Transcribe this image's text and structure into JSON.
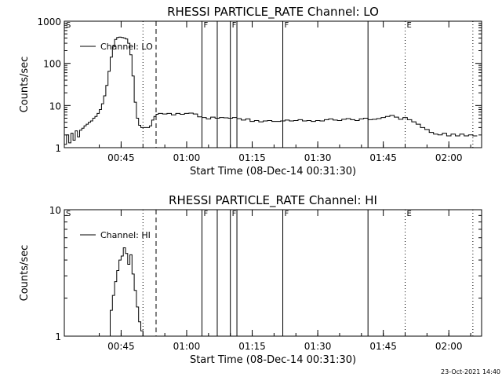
{
  "footer_timestamp": "23-Oct-2021 14:40",
  "chart_data": [
    {
      "type": "line",
      "title": "RHESSI PARTICLE_RATE Channel: LO",
      "xlabel": "Start Time (08-Dec-14 00:31:30)",
      "ylabel": "Counts/sec",
      "yscale": "log",
      "ylim": [
        1,
        1000
      ],
      "xlim_minutes": [
        0.5,
        56.0
      ],
      "xticks": [
        {
          "m": 13.5,
          "label": "00:45"
        },
        {
          "m": 28.5,
          "label": "01:00"
        },
        {
          "m": 43.5,
          "label": "01:15"
        },
        {
          "m": 58.5,
          "label": "01:30"
        },
        {
          "m": 73.5,
          "label": "01:45"
        },
        {
          "m": 88.5,
          "label": "02:00"
        }
      ],
      "yticks": [
        {
          "v": 1,
          "label": "1"
        },
        {
          "v": 10,
          "label": "10"
        },
        {
          "v": 100,
          "label": "100"
        },
        {
          "v": 1000,
          "label": "1000"
        }
      ],
      "legend": "Channel: LO",
      "legend_position": "top-left",
      "markers": [
        {
          "m": 0.5,
          "style": "none",
          "label": "S"
        },
        {
          "m": 18.5,
          "style": "dotted",
          "label": ""
        },
        {
          "m": 21.5,
          "style": "dashed",
          "label": ""
        },
        {
          "m": 32.0,
          "style": "solid",
          "label": "F"
        },
        {
          "m": 35.5,
          "style": "solid",
          "label": ""
        },
        {
          "m": 38.5,
          "style": "solid",
          "label": "F"
        },
        {
          "m": 40.0,
          "style": "solid",
          "label": ""
        },
        {
          "m": 50.5,
          "style": "solid",
          "label": "F"
        },
        {
          "m": 70.0,
          "style": "solid",
          "label": ""
        },
        {
          "m": 78.5,
          "style": "dotted",
          "label": "E"
        },
        {
          "m": 94.0,
          "style": "dotted",
          "label": ""
        }
      ],
      "series": [
        {
          "x": [
            0.5,
            1,
            1.5,
            2,
            2.5,
            3,
            3.5,
            4,
            4.5,
            5,
            5.5,
            6,
            6.5,
            7,
            7.5,
            8,
            8.5,
            9,
            9.5,
            10,
            10.5,
            11,
            11.5,
            12,
            12.5,
            13,
            13.5,
            14,
            14.5,
            15,
            15.5,
            16,
            16.5,
            17,
            17.5,
            18,
            18.5,
            19,
            19.5,
            20,
            20.5,
            21,
            21.5,
            22,
            23,
            24,
            25,
            26,
            27,
            28,
            29,
            30,
            31,
            32,
            33,
            34,
            35,
            36,
            37,
            38,
            39,
            40,
            41,
            42,
            43,
            44,
            45,
            46,
            47,
            48,
            49,
            50,
            51,
            52,
            53,
            54,
            55,
            56,
            57,
            58,
            59,
            60,
            61,
            62,
            63,
            64,
            65,
            66,
            67,
            68,
            69,
            70,
            71,
            72,
            73,
            74,
            75,
            76,
            77,
            78,
            79,
            80,
            81,
            82,
            83,
            84,
            85,
            86,
            87,
            88,
            89,
            90,
            91,
            92,
            93,
            94,
            95
          ],
          "y": [
            1.2,
            2,
            1.3,
            2.2,
            1.5,
            2.5,
            1.8,
            2.6,
            2.9,
            3.3,
            3.6,
            4,
            4.3,
            5,
            5.5,
            6.5,
            8,
            11,
            17,
            30,
            65,
            140,
            260,
            370,
            410,
            420,
            410,
            400,
            380,
            300,
            160,
            50,
            12,
            5,
            3.4,
            3,
            3,
            3,
            3,
            3.3,
            4.5,
            5.5,
            6.2,
            6.5,
            6.3,
            6.5,
            6,
            6.5,
            6.2,
            6.5,
            6.6,
            6.3,
            5.4,
            5.2,
            4.8,
            5.3,
            5,
            5.2,
            5.1,
            5,
            5.2,
            4.9,
            4.5,
            4.8,
            4.2,
            4.4,
            4.1,
            4.3,
            4.4,
            4.2,
            4.2,
            4.3,
            4.5,
            4.3,
            4.4,
            4.6,
            4.3,
            4.4,
            4.2,
            4.4,
            4.3,
            4.6,
            4.8,
            4.5,
            4.4,
            4.7,
            4.9,
            4.6,
            4.4,
            4.8,
            5,
            4.6,
            4.7,
            4.9,
            5.2,
            5.5,
            5.8,
            5.3,
            4.7,
            5.2,
            4.6,
            4.1,
            3.6,
            3,
            2.7,
            2.3,
            2.1,
            2,
            2.2,
            1.9,
            2.1,
            1.9,
            2.1,
            1.9,
            2,
            1.9,
            1.9
          ]
        }
      ]
    },
    {
      "type": "line",
      "title": "RHESSI PARTICLE_RATE Channel: HI",
      "xlabel": "Start Time (08-Dec-14 00:31:30)",
      "ylabel": "Counts/sec",
      "yscale": "log",
      "ylim": [
        1,
        10
      ],
      "xticks": [
        {
          "m": 13.5,
          "label": "00:45"
        },
        {
          "m": 28.5,
          "label": "01:00"
        },
        {
          "m": 43.5,
          "label": "01:15"
        },
        {
          "m": 58.5,
          "label": "01:30"
        },
        {
          "m": 73.5,
          "label": "01:45"
        },
        {
          "m": 88.5,
          "label": "02:00"
        }
      ],
      "yticks": [
        {
          "v": 1,
          "label": "1"
        },
        {
          "v": 10,
          "label": "10"
        }
      ],
      "legend": "Channel: HI",
      "legend_position": "top-left",
      "markers": [
        {
          "m": 0.5,
          "style": "none",
          "label": "S"
        },
        {
          "m": 18.5,
          "style": "dotted",
          "label": ""
        },
        {
          "m": 21.5,
          "style": "dashed",
          "label": ""
        },
        {
          "m": 32.0,
          "style": "solid",
          "label": "F"
        },
        {
          "m": 35.5,
          "style": "solid",
          "label": ""
        },
        {
          "m": 38.5,
          "style": "solid",
          "label": "F"
        },
        {
          "m": 40.0,
          "style": "solid",
          "label": ""
        },
        {
          "m": 50.5,
          "style": "solid",
          "label": "F"
        },
        {
          "m": 70.0,
          "style": "solid",
          "label": ""
        },
        {
          "m": 78.5,
          "style": "dotted",
          "label": "E"
        },
        {
          "m": 94.0,
          "style": "dotted",
          "label": ""
        }
      ],
      "series": [
        {
          "x": [
            10.5,
            11,
            11.5,
            12,
            12.5,
            13,
            13.5,
            14,
            14.5,
            15,
            15.5,
            16,
            16.5,
            17,
            17.5,
            18,
            18.5
          ],
          "y": [
            1,
            1.6,
            2.1,
            2.7,
            3.3,
            4.0,
            4.3,
            5.0,
            4.5,
            3.7,
            4.4,
            3.1,
            2.3,
            1.7,
            1.3,
            1.1,
            1
          ]
        }
      ]
    }
  ]
}
